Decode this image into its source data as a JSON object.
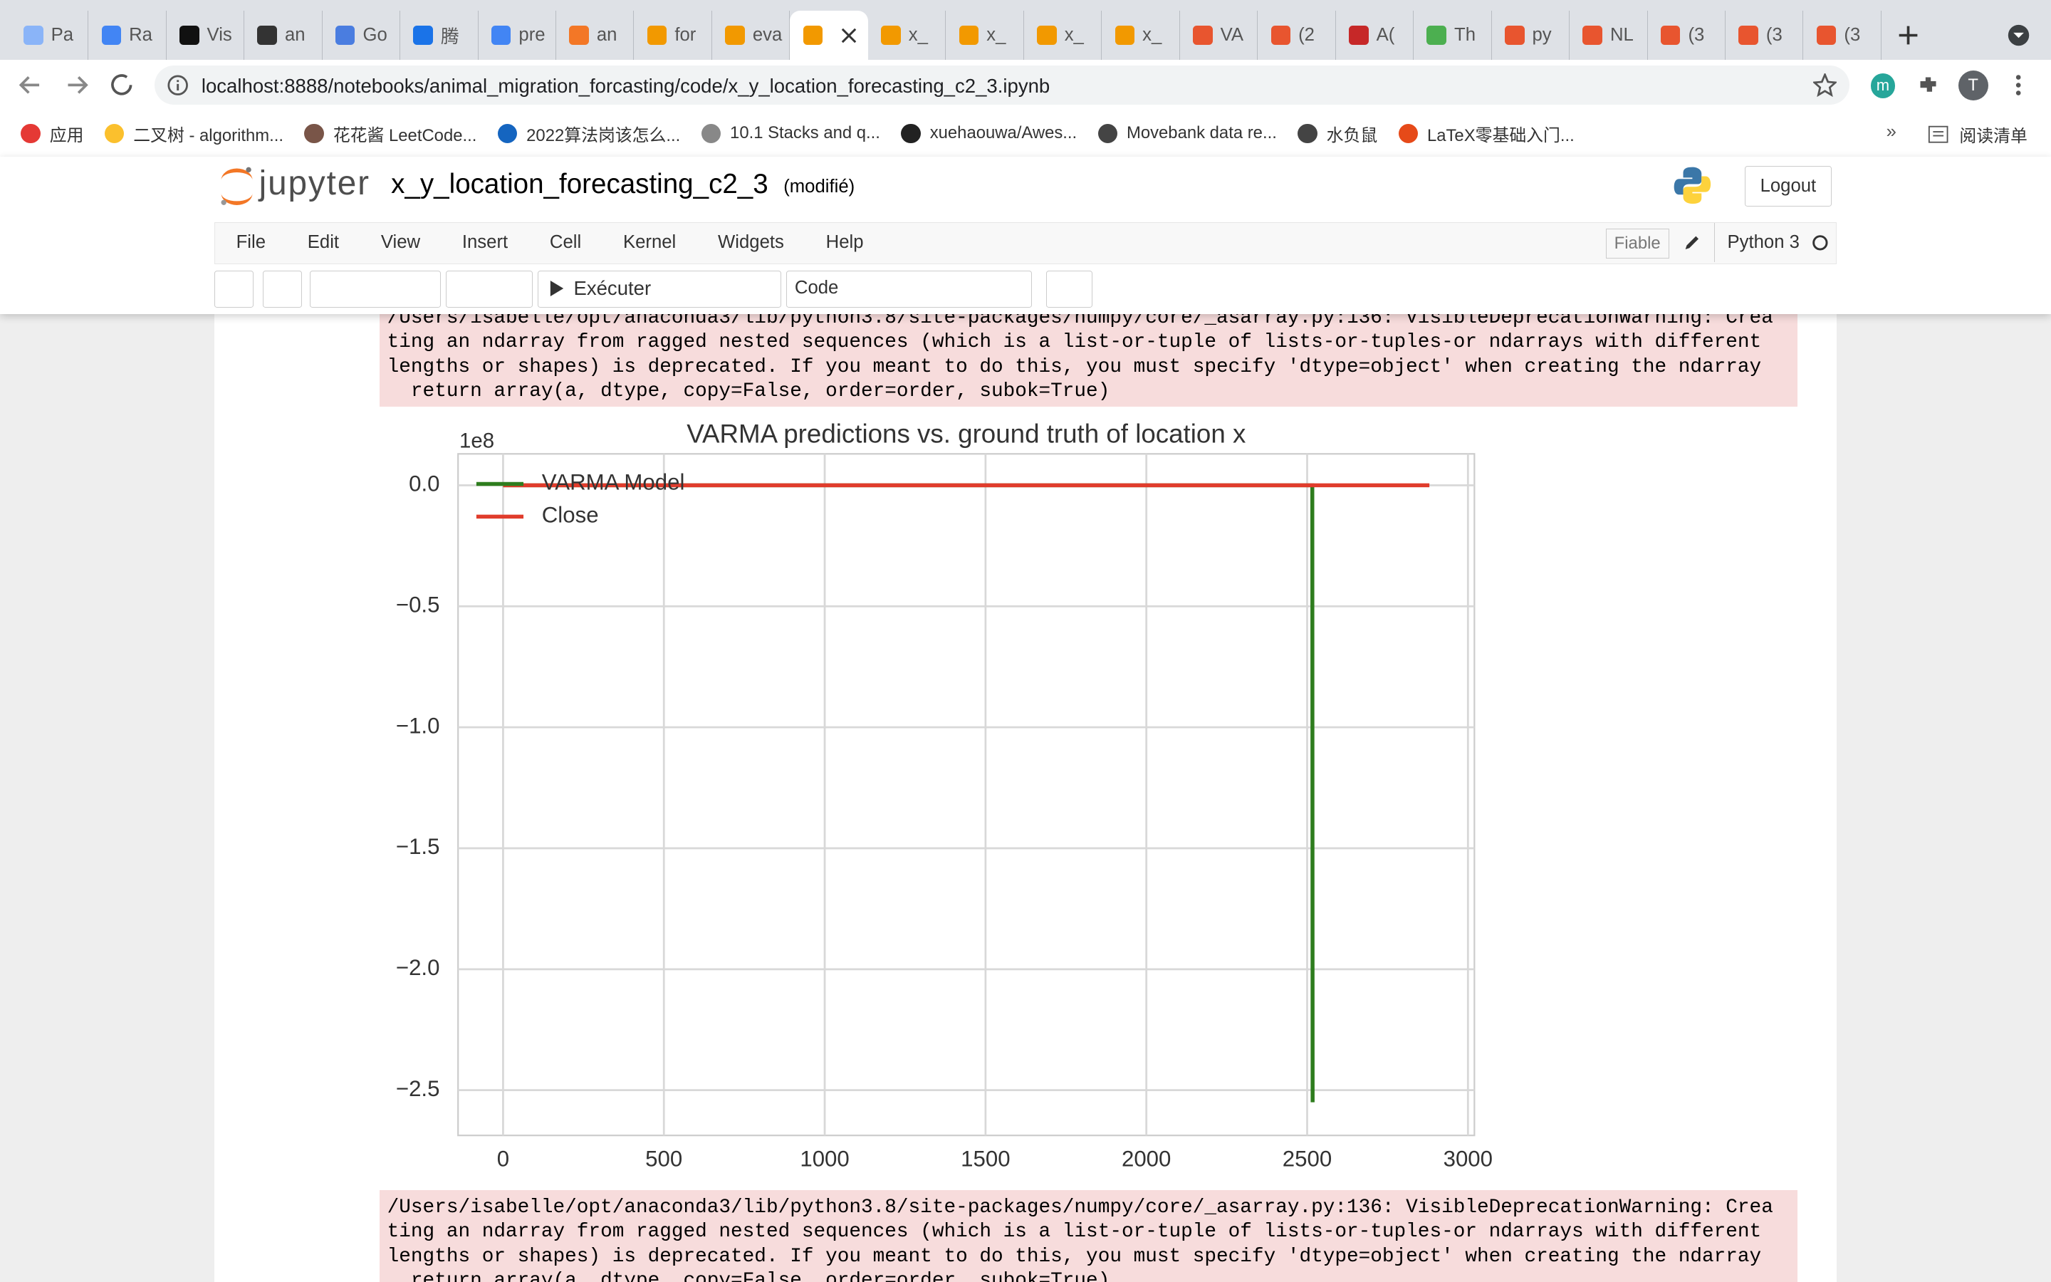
{
  "browser": {
    "tabs_before": [
      "Pa",
      "Ra",
      "Vis",
      "an",
      "Go",
      "腾",
      "pre",
      "an",
      "for",
      "eva"
    ],
    "tabs_after": [
      "x_",
      "x_",
      "x_",
      "x_",
      "VA",
      "(2",
      "A(",
      "Th",
      "py",
      "NL",
      "(3",
      "(3",
      "(3"
    ],
    "url": "localhost:8888/notebooks/animal_migration_forcasting/code/x_y_location_forecasting_c2_3.ipynb",
    "extension": "m",
    "profile": "T",
    "bookmarks": [
      "应用",
      "二叉树 - algorithm...",
      "花花酱 LeetCode...",
      "2022算法岗该怎么...",
      "10.1 Stacks and q...",
      "xuehaouwa/Awes...",
      "Movebank data re...",
      "水负鼠",
      "LaTeX零基础入门..."
    ],
    "reading_list": "阅读清单"
  },
  "notebook": {
    "logo": "jupyter",
    "name": "x_y_location_forecasting_c2_3",
    "status": "(modifié)",
    "logout": "Logout",
    "menu": [
      "File",
      "Edit",
      "View",
      "Insert",
      "Cell",
      "Kernel",
      "Widgets",
      "Help"
    ],
    "trusted": "Fiable",
    "kernel": "Python 3",
    "run_button": "Exécuter",
    "cell_type": "Code"
  },
  "outputs": [
    {
      "lines": [
        "/Users/isabelle/opt/anaconda3/lib/python3.8/site-packages/numpy/core/_asarray.py:136: VisibleDeprecationWarning: Crea",
        "ting an ndarray from ragged nested sequences (which is a list-or-tuple of lists-or-tuples-or ndarrays with different",
        "lengths or shapes) is deprecated. If you meant to do this, you must specify 'dtype=object' when creating the ndarray",
        "  return array(a, dtype, copy=False, order=order, subok=True)"
      ]
    },
    {
      "lines": [
        "/Users/isabelle/opt/anaconda3/lib/python3.8/site-packages/numpy/core/_asarray.py:136: VisibleDeprecationWarning: Crea",
        "ting an ndarray from ragged nested sequences (which is a list-or-tuple of lists-or-tuples-or ndarrays with different",
        "lengths or shapes) is deprecated. If you meant to do this, you must specify 'dtype=object' when creating the ndarray",
        "  return array(a, dtype, copy=False, order=order, subok=True)"
      ]
    }
  ],
  "chart_data": {
    "type": "line",
    "title": "VARMA predictions vs. ground truth of location x",
    "y_offset_label": "1e8",
    "series": [
      {
        "name": "VARMA Model",
        "color": "#2e7d1e",
        "x": [
          0,
          2516,
          2517
        ],
        "values": [
          0,
          0,
          -2.55
        ]
      },
      {
        "name": "Close",
        "color": "#e03c2c",
        "x": [
          0,
          2880
        ],
        "values": [
          0,
          0
        ]
      }
    ],
    "xlim": [
      -140,
      3020
    ],
    "xticks": [
      0,
      500,
      1000,
      1500,
      2000,
      2500,
      3000
    ],
    "ylim": [
      -2.687,
      0.13
    ],
    "yticks": [
      {
        "value": 0,
        "label": "0.0"
      },
      {
        "value": -0.5,
        "label": "−0.5"
      },
      {
        "value": -1,
        "label": "−1.0"
      },
      {
        "value": -1.5,
        "label": "−1.5"
      },
      {
        "value": -2,
        "label": "−2.0"
      },
      {
        "value": -2.5,
        "label": "−2.5"
      }
    ],
    "grid": true,
    "legend": "upper left"
  }
}
